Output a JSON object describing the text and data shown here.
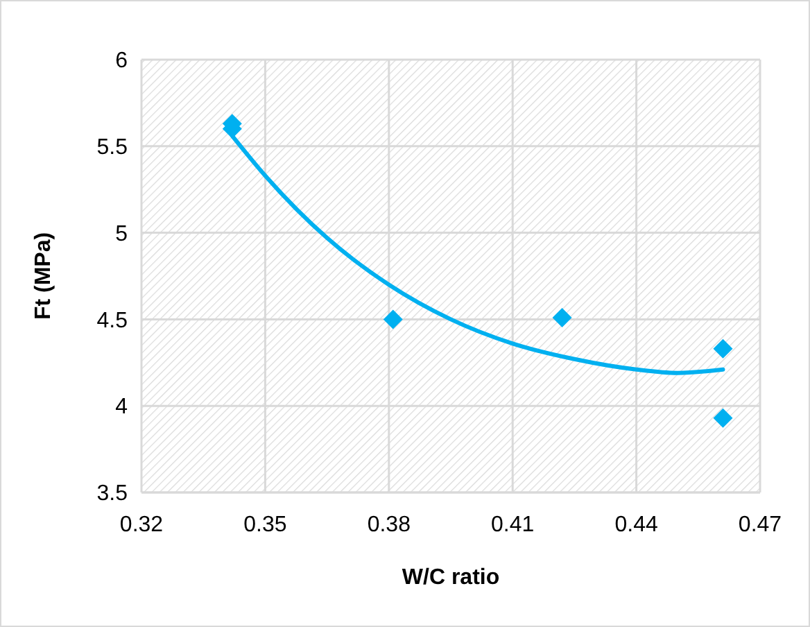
{
  "chart_data": {
    "type": "scatter",
    "xlabel": "W/C ratio",
    "ylabel": "Ft (MPa)",
    "xlim": [
      0.32,
      0.47
    ],
    "xticks": [
      0.32,
      0.35,
      0.38,
      0.41,
      0.44,
      0.47
    ],
    "ylim": [
      3.5,
      6
    ],
    "yticks": [
      3.5,
      4,
      4.5,
      5,
      5.5,
      6
    ],
    "grid": true,
    "series": [
      {
        "color": "#00b0f0",
        "marker": "diamond",
        "x": [
          0.342,
          0.342,
          0.381,
          0.422,
          0.461,
          0.461
        ],
        "values": [
          5.63,
          5.6,
          4.5,
          4.51,
          4.33,
          3.93
        ]
      },
      {
        "type": "line",
        "color": "#00b0f0",
        "marker": "none",
        "line_style": "solid",
        "x": [
          0.342,
          0.35,
          0.365,
          0.38,
          0.395,
          0.41,
          0.425,
          0.44,
          0.45,
          0.461
        ],
        "values": [
          5.56,
          5.33,
          4.97,
          4.7,
          4.5,
          4.36,
          4.27,
          4.21,
          4.19,
          4.21
        ]
      }
    ]
  }
}
